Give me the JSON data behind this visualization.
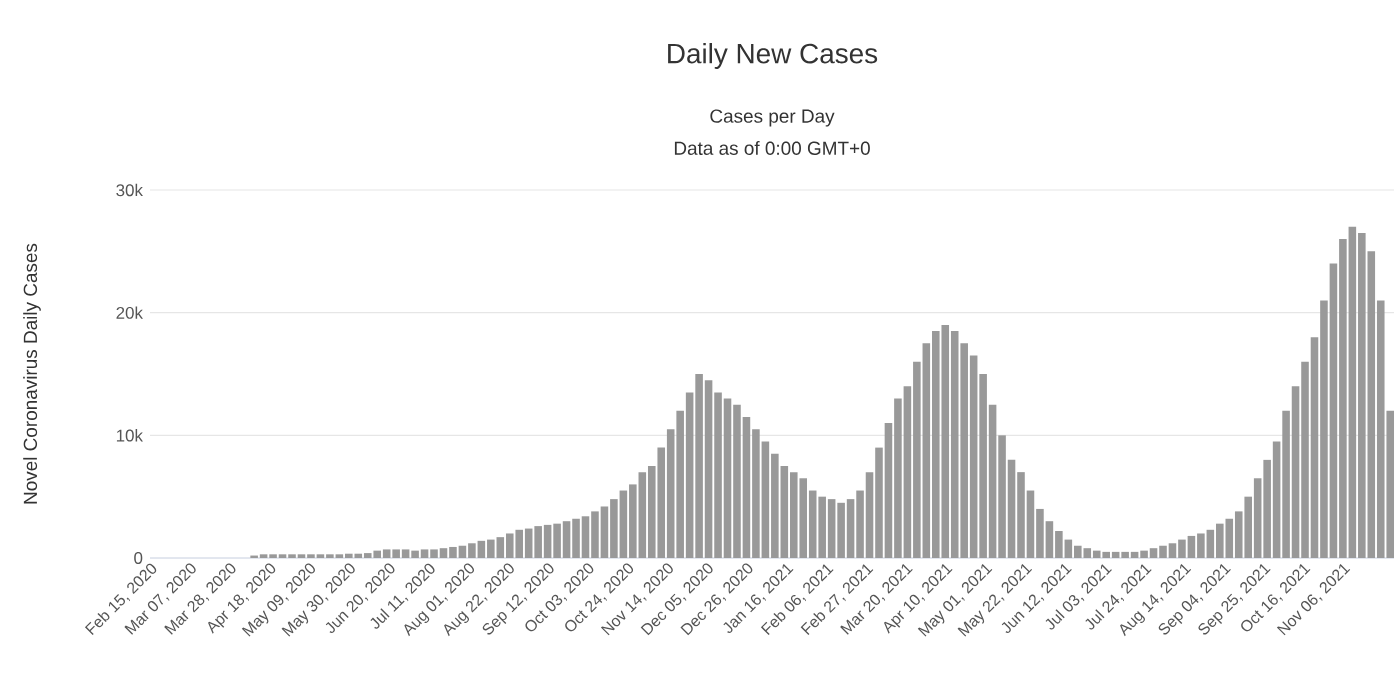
{
  "chart_data": {
    "type": "bar",
    "title": "Daily New Cases",
    "subtitle": "Cases per Day",
    "annotations": [
      "Data as of 0:00 GMT+0"
    ],
    "ylabel": "Novel Coronavirus Daily Cases",
    "color": "#999999",
    "grid": "y",
    "x": [
      "2020-04-10",
      "2020-04-15",
      "2020-04-20",
      "2020-04-25",
      "2020-04-30",
      "2020-05-05",
      "2020-05-10",
      "2020-05-15",
      "2020-05-20",
      "2020-05-25",
      "2020-05-30",
      "2020-06-04",
      "2020-06-09",
      "2020-06-14",
      "2020-06-19",
      "2020-06-24",
      "2020-06-29",
      "2020-07-04",
      "2020-07-09",
      "2020-07-14",
      "2020-07-19",
      "2020-07-24",
      "2020-07-29",
      "2020-08-03",
      "2020-08-08",
      "2020-08-13",
      "2020-08-18",
      "2020-08-23",
      "2020-08-28",
      "2020-09-02",
      "2020-09-07",
      "2020-09-12",
      "2020-09-17",
      "2020-09-22",
      "2020-09-27",
      "2020-10-02",
      "2020-10-07",
      "2020-10-12",
      "2020-10-17",
      "2020-10-22",
      "2020-10-27",
      "2020-11-01",
      "2020-11-06",
      "2020-11-11",
      "2020-11-16",
      "2020-11-21",
      "2020-11-26",
      "2020-12-01",
      "2020-12-06",
      "2020-12-11",
      "2020-12-16",
      "2020-12-21",
      "2020-12-26",
      "2020-12-31",
      "2021-01-05",
      "2021-01-10",
      "2021-01-15",
      "2021-01-20",
      "2021-01-25",
      "2021-01-30",
      "2021-02-04",
      "2021-02-09",
      "2021-02-14",
      "2021-02-19",
      "2021-02-24",
      "2021-03-01",
      "2021-03-06",
      "2021-03-11",
      "2021-03-16",
      "2021-03-21",
      "2021-03-26",
      "2021-03-31",
      "2021-04-05",
      "2021-04-10",
      "2021-04-15",
      "2021-04-20",
      "2021-04-25",
      "2021-04-30",
      "2021-05-05",
      "2021-05-10",
      "2021-05-15",
      "2021-05-20",
      "2021-05-25",
      "2021-05-30",
      "2021-06-04",
      "2021-06-09",
      "2021-06-14",
      "2021-06-19",
      "2021-06-24",
      "2021-06-29",
      "2021-07-04",
      "2021-07-09",
      "2021-07-14",
      "2021-07-19",
      "2021-07-24",
      "2021-07-29",
      "2021-08-03",
      "2021-08-08",
      "2021-08-13",
      "2021-08-18",
      "2021-08-23",
      "2021-08-28",
      "2021-09-02",
      "2021-09-07",
      "2021-09-12",
      "2021-09-17",
      "2021-09-22",
      "2021-09-27",
      "2021-10-02",
      "2021-10-07",
      "2021-10-12",
      "2021-10-17",
      "2021-10-22",
      "2021-10-27",
      "2021-11-01",
      "2021-11-06",
      "2021-11-11",
      "2021-11-16",
      "2021-11-21",
      "2021-11-26",
      "2021-12-01"
    ],
    "values": [
      200,
      300,
      300,
      300,
      300,
      300,
      300,
      300,
      300,
      300,
      350,
      350,
      400,
      600,
      700,
      700,
      700,
      600,
      700,
      700,
      800,
      900,
      1000,
      1200,
      1400,
      1500,
      1700,
      2000,
      2300,
      2400,
      2600,
      2700,
      2800,
      3000,
      3200,
      3400,
      3800,
      4200,
      4800,
      5500,
      6000,
      7000,
      7500,
      9000,
      10500,
      12000,
      13500,
      15000,
      14500,
      13500,
      13000,
      12500,
      11500,
      10500,
      9500,
      8500,
      7500,
      7000,
      6500,
      5500,
      5000,
      4800,
      4500,
      4800,
      5500,
      7000,
      9000,
      11000,
      13000,
      14000,
      16000,
      17500,
      18500,
      19000,
      18500,
      17500,
      16500,
      15000,
      12500,
      10000,
      8000,
      7000,
      5500,
      4000,
      3000,
      2200,
      1500,
      1000,
      800,
      600,
      500,
      500,
      500,
      500,
      600,
      800,
      1000,
      1200,
      1500,
      1800,
      2000,
      2300,
      2800,
      3200,
      3800,
      5000,
      6500,
      8000,
      9500,
      12000,
      14000,
      16000,
      18000,
      21000,
      24000,
      26000,
      27000,
      26500,
      25000,
      21000,
      12000
    ],
    "xlim": [
      "2020-02-15",
      "2021-12-03"
    ],
    "xticks": [
      {
        "value": "2020-02-15",
        "label": "Feb 15, 2020"
      },
      {
        "value": "2020-03-07",
        "label": "Mar 07, 2020"
      },
      {
        "value": "2020-03-28",
        "label": "Mar 28, 2020"
      },
      {
        "value": "2020-04-18",
        "label": "Apr 18, 2020"
      },
      {
        "value": "2020-05-09",
        "label": "May 09, 2020"
      },
      {
        "value": "2020-05-30",
        "label": "May 30, 2020"
      },
      {
        "value": "2020-06-20",
        "label": "Jun 20, 2020"
      },
      {
        "value": "2020-07-11",
        "label": "Jul 11, 2020"
      },
      {
        "value": "2020-08-01",
        "label": "Aug 01, 2020"
      },
      {
        "value": "2020-08-22",
        "label": "Aug 22, 2020"
      },
      {
        "value": "2020-09-12",
        "label": "Sep 12, 2020"
      },
      {
        "value": "2020-10-03",
        "label": "Oct 03, 2020"
      },
      {
        "value": "2020-10-24",
        "label": "Oct 24, 2020"
      },
      {
        "value": "2020-11-14",
        "label": "Nov 14, 2020"
      },
      {
        "value": "2020-12-05",
        "label": "Dec 05, 2020"
      },
      {
        "value": "2020-12-26",
        "label": "Dec 26, 2020"
      },
      {
        "value": "2021-01-16",
        "label": "Jan 16, 2021"
      },
      {
        "value": "2021-02-06",
        "label": "Feb 06, 2021"
      },
      {
        "value": "2021-02-27",
        "label": "Feb 27, 2021"
      },
      {
        "value": "2021-03-20",
        "label": "Mar 20, 2021"
      },
      {
        "value": "2021-04-10",
        "label": "Apr 10, 2021"
      },
      {
        "value": "2021-05-01",
        "label": "May 01, 2021"
      },
      {
        "value": "2021-05-22",
        "label": "May 22, 2021"
      },
      {
        "value": "2021-06-12",
        "label": "Jun 12, 2021"
      },
      {
        "value": "2021-07-03",
        "label": "Jul 03, 2021"
      },
      {
        "value": "2021-07-24",
        "label": "Jul 24, 2021"
      },
      {
        "value": "2021-08-14",
        "label": "Aug 14, 2021"
      },
      {
        "value": "2021-09-04",
        "label": "Sep 04, 2021"
      },
      {
        "value": "2021-09-25",
        "label": "Sep 25, 2021"
      },
      {
        "value": "2021-10-16",
        "label": "Oct 16, 2021"
      },
      {
        "value": "2021-11-06",
        "label": "Nov 06, 2021"
      }
    ],
    "ylim": [
      0,
      30000
    ],
    "yticks": [
      0,
      {
        "value": 10000,
        "label": "10k"
      },
      {
        "value": 20000,
        "label": "20k"
      },
      {
        "value": 30000,
        "label": "30k"
      }
    ]
  }
}
